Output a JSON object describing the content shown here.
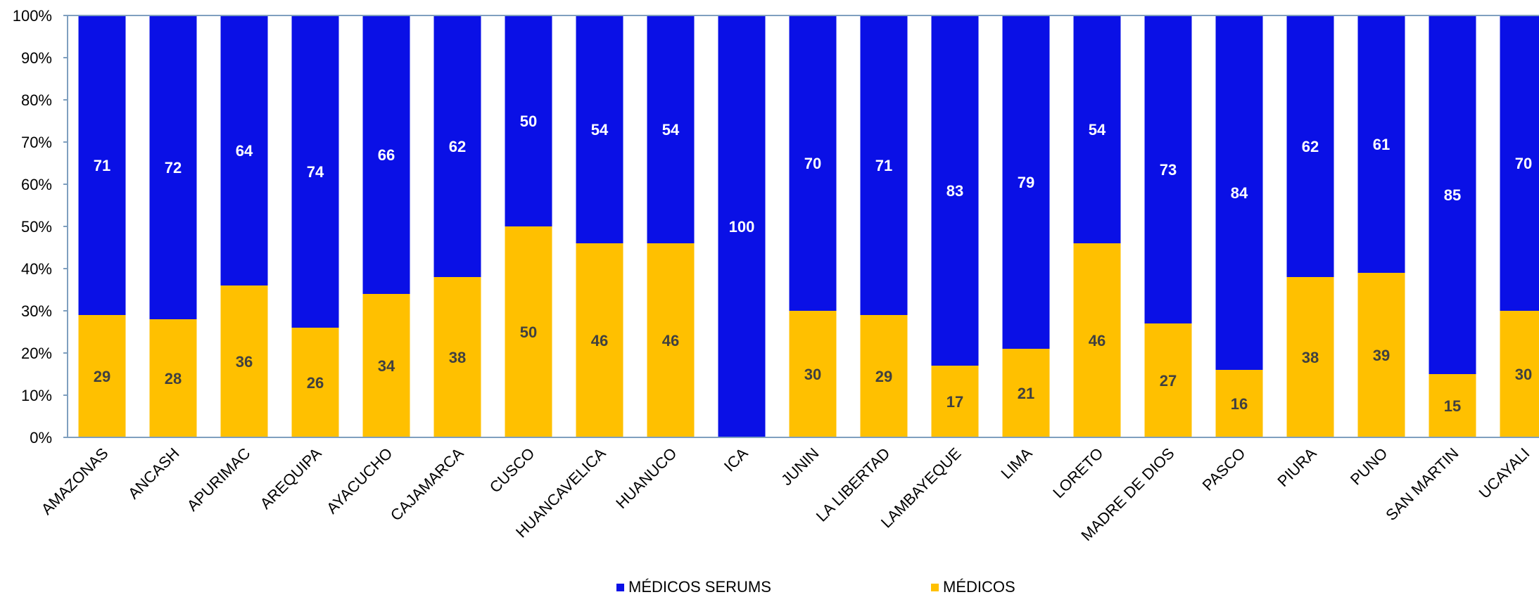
{
  "chart_data": {
    "type": "bar",
    "stacked": true,
    "normalized": true,
    "categories": [
      "AMAZONAS",
      "ANCASH",
      "APURIMAC",
      "AREQUIPA",
      "AYACUCHO",
      "CAJAMARCA",
      "CUSCO",
      "HUANCAVELICA",
      "HUANUCO",
      "ICA",
      "JUNIN",
      "LA LIBERTAD",
      "LAMBAYEQUE",
      "LIMA",
      "LORETO",
      "MADRE DE DIOS",
      "PASCO",
      "PIURA",
      "PUNO",
      "SAN MARTIN",
      "UCAYALI"
    ],
    "series": [
      {
        "name": "MÉDICOS",
        "color": "#FFC000",
        "label_color": "#404040",
        "values": [
          29,
          28,
          36,
          26,
          34,
          38,
          50,
          46,
          46,
          0,
          30,
          29,
          17,
          21,
          46,
          27,
          16,
          38,
          39,
          15,
          30
        ],
        "labels": [
          "29",
          "28",
          "36",
          "26",
          "34",
          "38",
          "50",
          "46",
          "46",
          "",
          "30",
          "29",
          "17",
          "21",
          "46",
          "27",
          "16",
          "38",
          "39",
          "15",
          "30"
        ]
      },
      {
        "name": "MÉDICOS SERUMS",
        "color": "#0A10E6",
        "label_color": "#FFFFFF",
        "values": [
          71,
          72,
          64,
          74,
          66,
          62,
          50,
          54,
          54,
          100,
          70,
          71,
          83,
          79,
          54,
          73,
          84,
          62,
          61,
          85,
          70
        ],
        "labels": [
          "71",
          "72",
          "64",
          "74",
          "66",
          "62",
          "50",
          "54",
          "54",
          "100",
          "70",
          "71",
          "83",
          "79",
          "54",
          "73",
          "84",
          "62",
          "61",
          "85",
          "70"
        ]
      }
    ],
    "y_ticks": [
      "0%",
      "10%",
      "20%",
      "30%",
      "40%",
      "50%",
      "60%",
      "70%",
      "80%",
      "90%",
      "100%"
    ],
    "ylim": [
      0,
      100
    ],
    "grid": false,
    "legend": {
      "placement": "bottom",
      "order": [
        "MÉDICOS SERUMS",
        "MÉDICOS"
      ]
    },
    "title": "",
    "xlabel": "",
    "ylabel": ""
  }
}
